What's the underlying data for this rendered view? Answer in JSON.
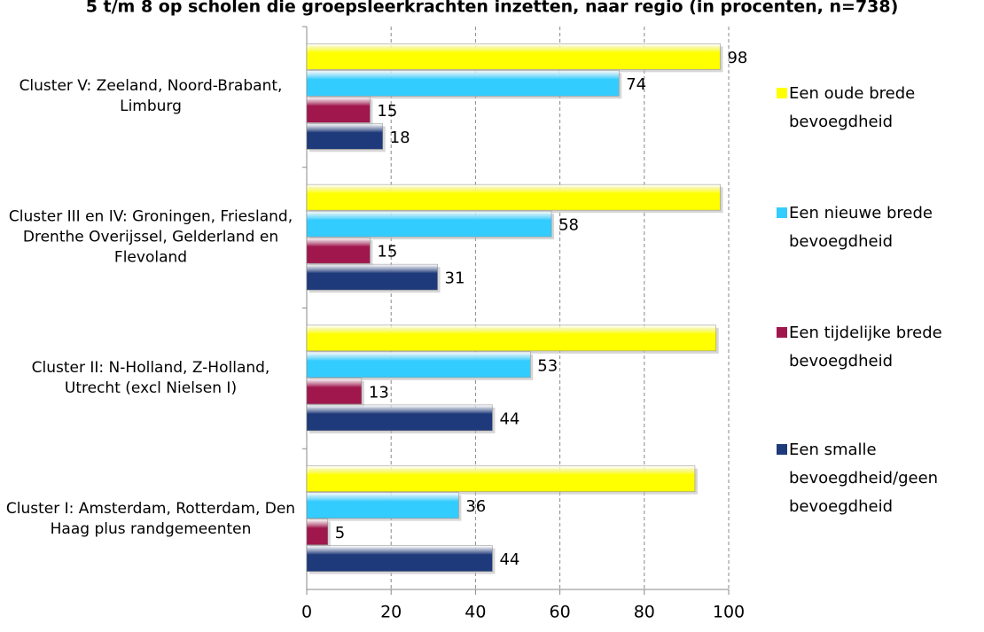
{
  "chart_data": {
    "type": "hbar",
    "title": "5 t/m 8 op scholen die groepsleerkrachten inzetten, naar regio (in procenten, n=738)",
    "categories": [
      "Cluster V: Zeeland, Noord-Brabant, Limburg",
      "Cluster III en IV: Groningen, Friesland, Drenthe Overijssel, Gelderland en Flevoland",
      "Cluster II: N-Holland, Z-Holland, Utrecht (excl Nielsen I)",
      "Cluster I: Amsterdam, Rotterdam, Den Haag plus randgemeenten"
    ],
    "series": [
      {
        "name": "Een oude brede bevoegdheid",
        "color": "#ffff00",
        "values": [
          98,
          98,
          97,
          92
        ],
        "value_labels": [
          "98",
          null,
          null,
          null
        ]
      },
      {
        "name": "Een nieuwe brede bevoegdheid",
        "color": "#33ccff",
        "values": [
          74,
          58,
          53,
          36
        ]
      },
      {
        "name": "Een tijdelijke brede bevoegdheid",
        "color": "#a0174e",
        "values": [
          15,
          15,
          13,
          5
        ]
      },
      {
        "name": "Een smalle bevoegdheid/geen bevoegdheid",
        "color": "#1f3a7a",
        "values": [
          18,
          31,
          44,
          44
        ]
      }
    ],
    "xlim": [
      0,
      100
    ],
    "xticks": [
      0,
      20,
      40,
      60,
      80,
      100
    ],
    "grid": true,
    "legend": "right"
  }
}
